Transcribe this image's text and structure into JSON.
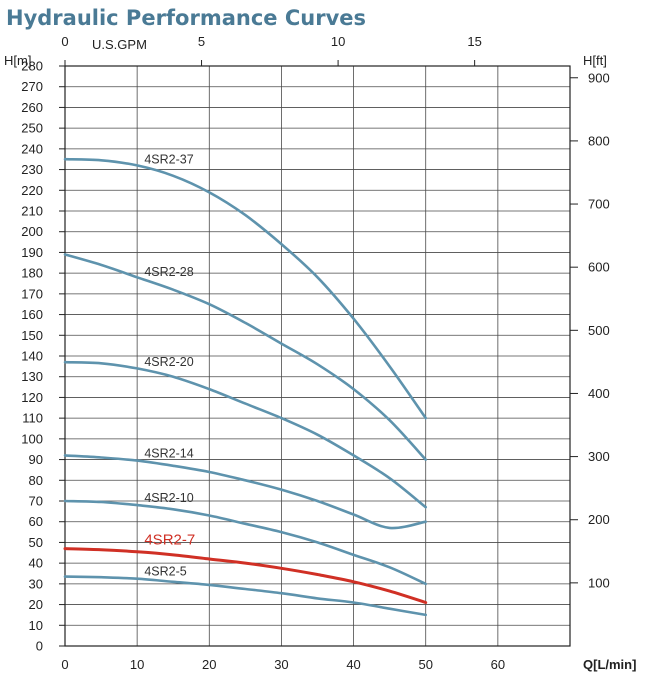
{
  "chart_data": {
    "type": "line",
    "title": "Hydraulic Performance Curves",
    "xlabel": "Q[L/min]",
    "ylabel_left": "H[m]",
    "ylabel_right": "H[ft]",
    "top_axis_label": "U.S.GPM",
    "xlim": [
      0,
      70
    ],
    "ylim": [
      0,
      280
    ],
    "grid": true,
    "x_ticks": [
      0,
      10,
      20,
      30,
      40,
      50,
      60
    ],
    "y_ticks_left": [
      0,
      10,
      20,
      30,
      40,
      50,
      60,
      70,
      80,
      90,
      100,
      110,
      120,
      130,
      140,
      150,
      160,
      170,
      180,
      190,
      200,
      210,
      220,
      230,
      240,
      250,
      260,
      270,
      280
    ],
    "top_ticks_gpm": [
      0,
      5,
      10,
      15
    ],
    "right_ticks_ft": [
      100,
      200,
      300,
      400,
      500,
      600,
      700,
      800,
      900
    ],
    "series": [
      {
        "name": "4SR2-37",
        "highlight": false,
        "x": [
          0,
          5,
          10,
          15,
          20,
          25,
          30,
          35,
          40,
          45,
          50
        ],
        "y": [
          235,
          234.5,
          232,
          227,
          219,
          208,
          194,
          178,
          158,
          135,
          110
        ]
      },
      {
        "name": "4SR2-28",
        "highlight": false,
        "x": [
          0,
          5,
          10,
          15,
          20,
          25,
          30,
          35,
          40,
          45,
          50
        ],
        "y": [
          189,
          184,
          178,
          172,
          165,
          156,
          146,
          136,
          124,
          109,
          90
        ]
      },
      {
        "name": "4SR2-20",
        "highlight": false,
        "x": [
          0,
          5,
          10,
          15,
          20,
          25,
          30,
          35,
          40,
          45,
          50
        ],
        "y": [
          137,
          136.5,
          134,
          130,
          124,
          117,
          110,
          102,
          92,
          81,
          67
        ]
      },
      {
        "name": "4SR2-14",
        "highlight": false,
        "x": [
          0,
          5,
          10,
          15,
          20,
          25,
          30,
          35,
          40,
          45,
          50
        ],
        "y": [
          92,
          91,
          89.5,
          87,
          84,
          80,
          75.5,
          70,
          63.5,
          57,
          60
        ]
      },
      {
        "name": "4SR2-10",
        "highlight": false,
        "x": [
          0,
          5,
          10,
          15,
          20,
          25,
          30,
          35,
          40,
          45,
          50
        ],
        "y": [
          70,
          69.5,
          68,
          66,
          63,
          59,
          55,
          50,
          44,
          38,
          30
        ]
      },
      {
        "name": "4SR2-7",
        "highlight": true,
        "x": [
          0,
          5,
          10,
          15,
          20,
          25,
          30,
          35,
          40,
          45,
          50
        ],
        "y": [
          47,
          46.5,
          45.5,
          44,
          42,
          40,
          37.5,
          34.5,
          31,
          26.5,
          21
        ]
      },
      {
        "name": "4SR2-5",
        "highlight": false,
        "x": [
          0,
          5,
          10,
          15,
          20,
          25,
          30,
          35,
          40,
          45,
          50
        ],
        "y": [
          33.5,
          33.2,
          32.5,
          31,
          29.5,
          27.5,
          25.5,
          23,
          21,
          18,
          15
        ]
      }
    ],
    "series_label_x": [
      11,
      11,
      11,
      11,
      11,
      11,
      11
    ],
    "colors": {
      "default_curve": "#5e93ad",
      "highlight_curve": "#d03025",
      "dark_segment": "#2e3a44"
    }
  }
}
